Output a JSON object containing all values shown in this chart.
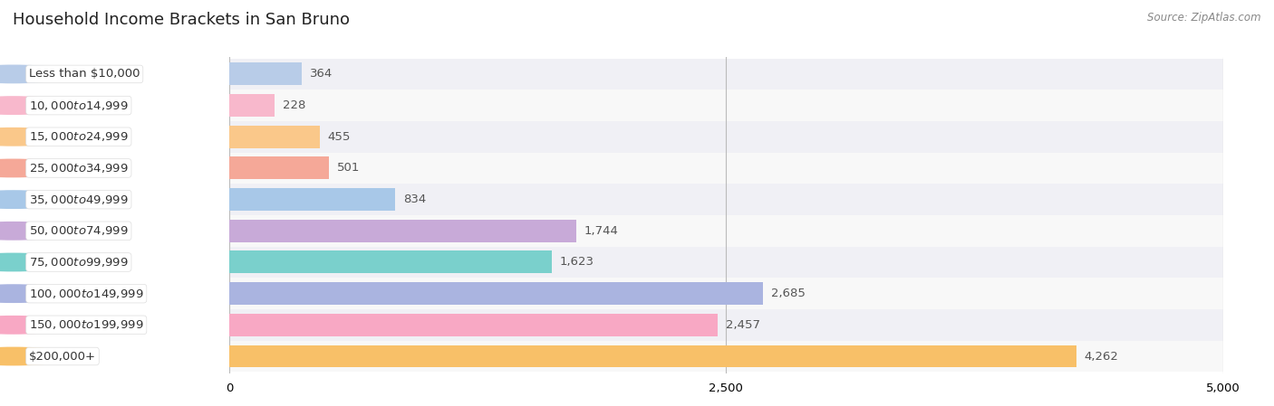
{
  "title": "Household Income Brackets in San Bruno",
  "source": "Source: ZipAtlas.com",
  "categories": [
    "Less than $10,000",
    "$10,000 to $14,999",
    "$15,000 to $24,999",
    "$25,000 to $34,999",
    "$35,000 to $49,999",
    "$50,000 to $74,999",
    "$75,000 to $99,999",
    "$100,000 to $149,999",
    "$150,000 to $199,999",
    "$200,000+"
  ],
  "values": [
    364,
    228,
    455,
    501,
    834,
    1744,
    1623,
    2685,
    2457,
    4262
  ],
  "bar_colors": [
    "#b8cce8",
    "#f8b8cc",
    "#fac88a",
    "#f5a898",
    "#a8c8e8",
    "#c8aad8",
    "#7ad0cc",
    "#aab4e0",
    "#f8a8c4",
    "#f8c068"
  ],
  "row_bg_even": "#f0f0f5",
  "row_bg_odd": "#f8f8f8",
  "xlim": [
    0,
    5000
  ],
  "xticks": [
    0,
    2500,
    5000
  ],
  "background_color": "#ffffff",
  "title_fontsize": 13,
  "label_fontsize": 9.5,
  "value_fontsize": 9.5,
  "source_fontsize": 8.5
}
